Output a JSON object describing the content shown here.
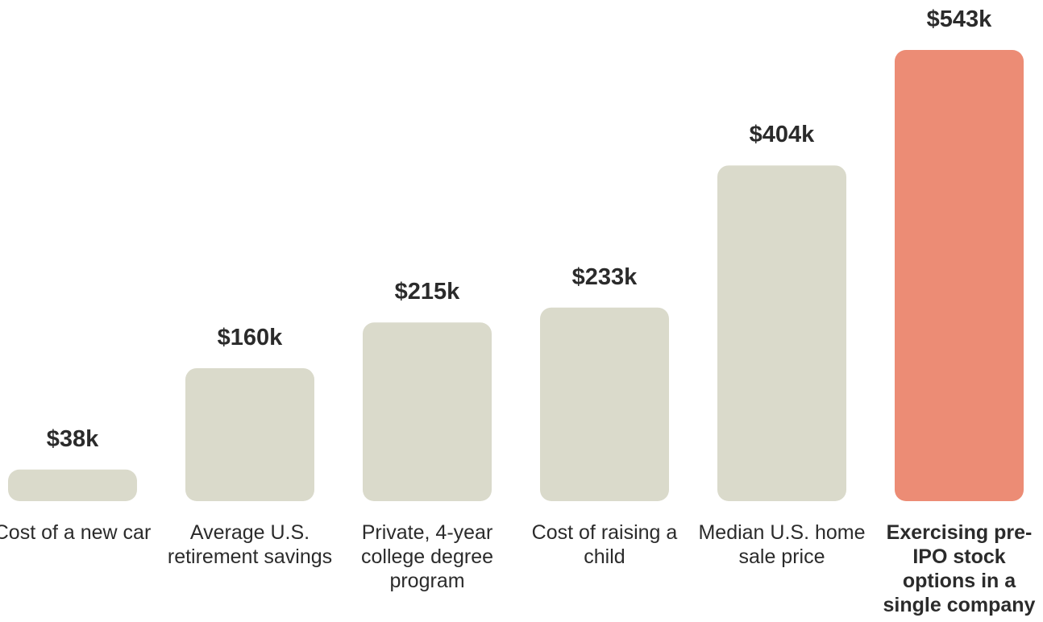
{
  "chart_data": {
    "type": "bar",
    "categories": [
      "Cost of a new car",
      "Average U.S. retirement savings",
      "Private, 4-year college degree program",
      "Cost of raising a child",
      "Median U.S. home sale price",
      "Exercising pre-IPO stock options in a single company"
    ],
    "values": [
      38,
      160,
      215,
      233,
      404,
      543
    ],
    "value_labels": [
      "$38k",
      "$160k",
      "$215k",
      "$233k",
      "$404k",
      "$543k"
    ],
    "colors": [
      "#dadacb",
      "#dadacb",
      "#dadacb",
      "#dadacb",
      "#dadacb",
      "#ec8c75"
    ]
  }
}
